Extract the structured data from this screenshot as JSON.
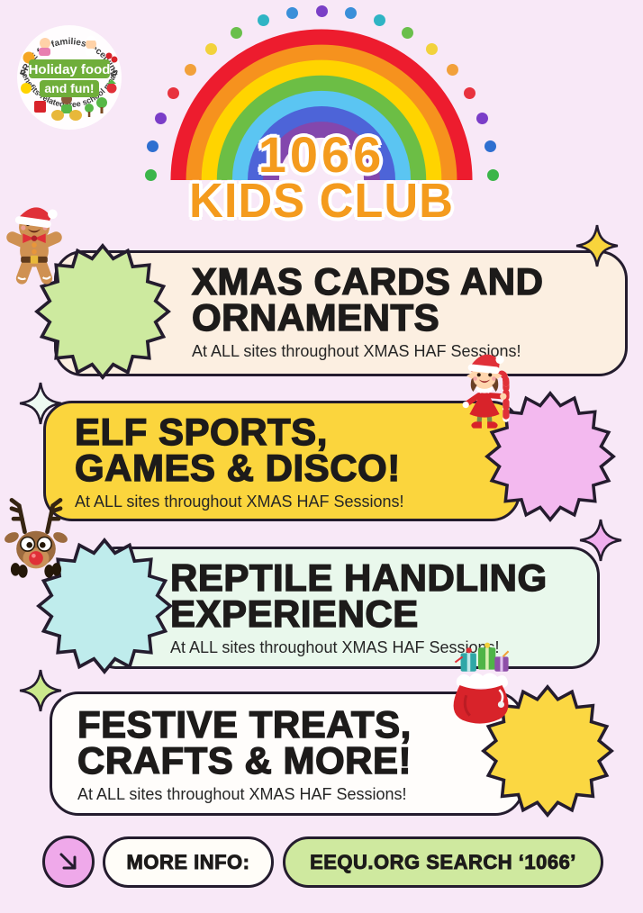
{
  "colors": {
    "background": "#f8e8f7",
    "card_border": "#241c2e",
    "heading_text": "#1d1b1a",
    "title_orange": "#f49b1d"
  },
  "logo": {
    "arc_top_text": "FREE for families receiving",
    "arc_bottom_text": "benefits-related free school meals",
    "badge_line1": "Holiday food",
    "badge_line2": "and fun!",
    "badge_color": "#6fae3a"
  },
  "header": {
    "title_line1": "1066",
    "title_line2": "KIDS CLUB",
    "rainbow_colors": [
      "#ed1c2e",
      "#f6921e",
      "#ffd400",
      "#6cbe45",
      "#5bc5f2",
      "#4d64d8",
      "#8347ad"
    ],
    "dot_colors": [
      "#3cb54a",
      "#2f6fd0",
      "#7b3dc8",
      "#e8323e",
      "#f2a03a",
      "#f2d23c",
      "#6abf4b",
      "#2fb4c4",
      "#3a8fd9",
      "#7a3fc6",
      "#3a8fd9",
      "#2fb4c4",
      "#6abf4b",
      "#f2d23c",
      "#f2a03a",
      "#e8323e",
      "#7b3dc8",
      "#2f6fd0",
      "#3cb54a"
    ]
  },
  "cards": [
    {
      "title_line1": "XMAS CARDS AND",
      "title_line2": "ORNAMENTS",
      "subtitle": "At ALL sites throughout XMAS HAF Sessions!",
      "bg": "#fcefe1",
      "burst_color": "#cdea9f",
      "icon": "gingerbread-man-icon",
      "mascot_side": "left"
    },
    {
      "title_line1": "ELF SPORTS,",
      "title_line2": "GAMES & DISCO!",
      "subtitle": "At ALL sites throughout XMAS HAF Sessions!",
      "bg": "#fbd53d",
      "burst_color": "#f3b9ef",
      "icon": "elf-girl-icon",
      "mascot_side": "right"
    },
    {
      "title_line1": "REPTILE HANDLING",
      "title_line2": "EXPERIENCE",
      "subtitle": "At ALL sites throughout XMAS HAF Sessions!",
      "bg": "#e9f8ec",
      "burst_color": "#bfecec",
      "icon": "reindeer-icon",
      "mascot_side": "left"
    },
    {
      "title_line1": "FESTIVE TREATS,",
      "title_line2": "CRAFTS & MORE!",
      "subtitle": "At ALL sites throughout XMAS HAF Sessions!",
      "bg": "#fffdfb",
      "burst_color": "#fbd742",
      "icon": "santa-sack-icon",
      "mascot_side": "right"
    }
  ],
  "sparkles": [
    {
      "color": "#f8d43c"
    },
    {
      "color": "#eefaf2"
    },
    {
      "color": "#f0aeee"
    },
    {
      "color": "#cbe98c"
    }
  ],
  "footer": {
    "arrow_icon": "arrow-down-right-icon",
    "arrow_button_color": "#efa9ea",
    "more_info_label": "MORE INFO:",
    "more_info_bg": "#fffdf8",
    "search_label": "EEQU.ORG SEARCH ‘1066’",
    "search_bg": "#cfe99f"
  }
}
